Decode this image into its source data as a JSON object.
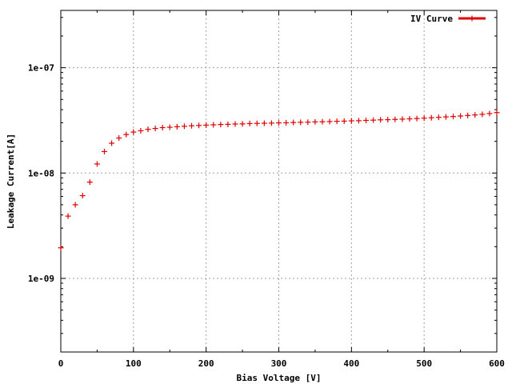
{
  "chart_data": {
    "type": "scatter",
    "title": "",
    "xlabel": "Bias Voltage [V]",
    "ylabel": "Leakage Current[A]",
    "xlim": [
      0,
      600
    ],
    "ylim": [
      2e-10,
      3.5e-07
    ],
    "yscale": "log",
    "grid": true,
    "legend_position": "top-right",
    "x_ticks": [
      0,
      100,
      200,
      300,
      400,
      500,
      600
    ],
    "x_tick_labels": [
      "0",
      "100",
      "200",
      "300",
      "400",
      "500",
      "600"
    ],
    "y_ticks": [
      1e-09,
      1e-08,
      1e-07
    ],
    "y_tick_labels": [
      "1e-09",
      "1e-08",
      "1e-07"
    ],
    "color": "#e00000",
    "series": [
      {
        "name": "IV Curve",
        "x": [
          0,
          10,
          20,
          30,
          40,
          50,
          60,
          70,
          80,
          90,
          100,
          110,
          120,
          130,
          140,
          150,
          160,
          170,
          180,
          190,
          200,
          210,
          220,
          230,
          240,
          250,
          260,
          270,
          280,
          290,
          300,
          310,
          320,
          330,
          340,
          350,
          360,
          370,
          380,
          390,
          400,
          410,
          420,
          430,
          440,
          450,
          460,
          470,
          480,
          490,
          500,
          510,
          520,
          530,
          540,
          550,
          560,
          570,
          580,
          590,
          600
        ],
        "y": [
          1.95e-09,
          3.9e-09,
          5e-09,
          6.1e-09,
          8.2e-09,
          1.22e-08,
          1.6e-08,
          1.92e-08,
          2.15e-08,
          2.32e-08,
          2.45e-08,
          2.52e-08,
          2.6e-08,
          2.65e-08,
          2.7e-08,
          2.72e-08,
          2.75e-08,
          2.78e-08,
          2.81e-08,
          2.83e-08,
          2.85e-08,
          2.87e-08,
          2.89e-08,
          2.9e-08,
          2.92e-08,
          2.93e-08,
          2.95e-08,
          2.96e-08,
          2.97e-08,
          2.98e-08,
          2.99e-08,
          3e-08,
          3.02e-08,
          3.03e-08,
          3.04e-08,
          3.06e-08,
          3.07e-08,
          3.08e-08,
          3.1e-08,
          3.11e-08,
          3.13e-08,
          3.14e-08,
          3.16e-08,
          3.18e-08,
          3.2e-08,
          3.21e-08,
          3.23e-08,
          3.25e-08,
          3.27e-08,
          3.29e-08,
          3.32e-08,
          3.35e-08,
          3.38e-08,
          3.41e-08,
          3.44e-08,
          3.48e-08,
          3.52e-08,
          3.56e-08,
          3.61e-08,
          3.67e-08,
          3.75e-08
        ]
      }
    ]
  }
}
